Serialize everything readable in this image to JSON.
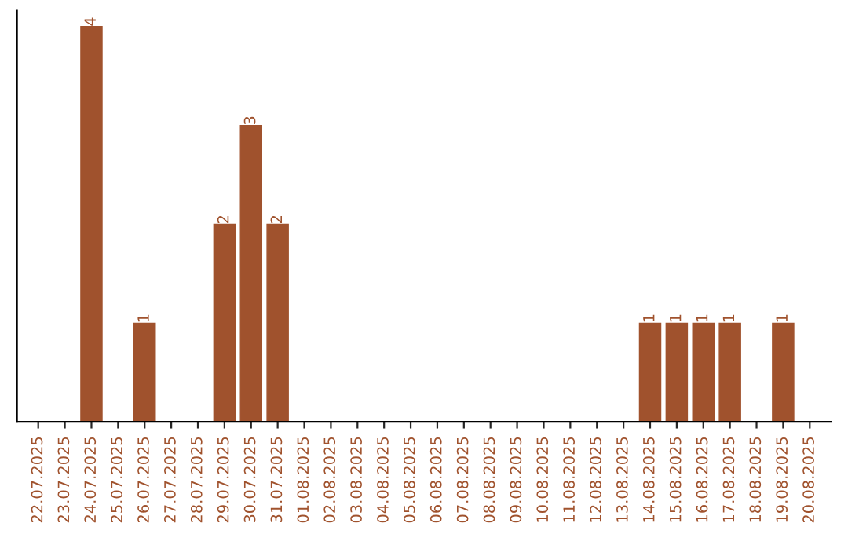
{
  "chart_data": {
    "type": "bar",
    "categories": [
      "22.07.2025",
      "23.07.2025",
      "24.07.2025",
      "25.07.2025",
      "26.07.2025",
      "27.07.2025",
      "28.07.2025",
      "29.07.2025",
      "30.07.2025",
      "31.07.2025",
      "01.08.2025",
      "02.08.2025",
      "03.08.2025",
      "04.08.2025",
      "05.08.2025",
      "06.08.2025",
      "07.08.2025",
      "08.08.2025",
      "09.08.2025",
      "10.08.2025",
      "11.08.2025",
      "12.08.2025",
      "13.08.2025",
      "14.08.2025",
      "15.08.2025",
      "16.08.2025",
      "17.08.2025",
      "18.08.2025",
      "19.08.2025",
      "20.08.2025"
    ],
    "values": [
      0,
      0,
      4,
      0,
      1,
      0,
      0,
      2,
      3,
      2,
      0,
      0,
      0,
      0,
      0,
      0,
      0,
      0,
      0,
      0,
      0,
      0,
      0,
      1,
      1,
      1,
      1,
      0,
      1,
      0
    ],
    "value_labels": [
      null,
      null,
      "4",
      null,
      "1",
      null,
      null,
      "2",
      "3",
      "2",
      null,
      null,
      null,
      null,
      null,
      null,
      null,
      null,
      null,
      null,
      null,
      null,
      null,
      "1",
      "1",
      "1",
      "1",
      null,
      "1",
      null
    ],
    "color": "#a0522d",
    "grid": false,
    "legend": false,
    "tick_labels": "x"
  }
}
